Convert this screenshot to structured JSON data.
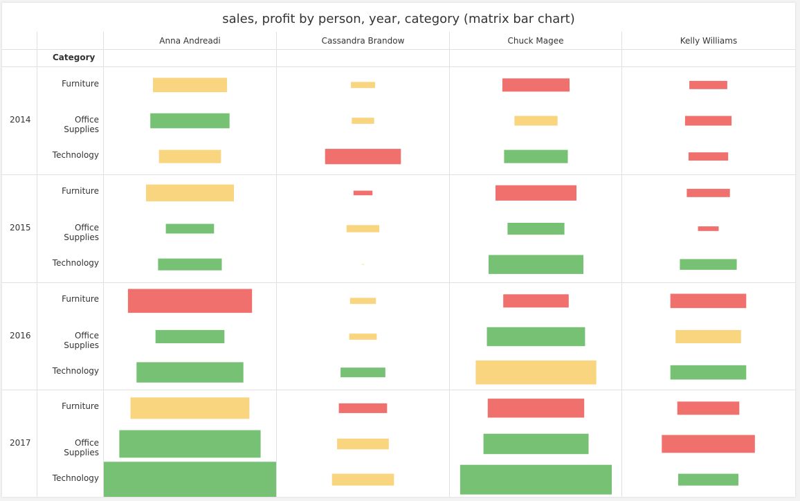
{
  "title": "sales, profit by person, year, category (matrix bar chart)",
  "row_header": "Category",
  "chart_data": {
    "type": "bar",
    "title": "sales, profit by person, year, category (matrix bar chart)",
    "persons": [
      "Anna Andreadi",
      "Cassandra Brandow",
      "Chuck Magee",
      "Kelly Williams"
    ],
    "years": [
      "2014",
      "2015",
      "2016",
      "2017"
    ],
    "categories": [
      "Furniture",
      "Office Supplies",
      "Technology"
    ],
    "colors": {
      "high": "#77c175",
      "medium": "#f8d57e",
      "low": "#ef706c"
    },
    "cells": [
      {
        "person": "Anna Andreadi",
        "year": "2014",
        "category": "Furniture",
        "sales": 0.43,
        "profit": 0.4,
        "profit_level": "medium"
      },
      {
        "person": "Anna Andreadi",
        "year": "2014",
        "category": "Office Supplies",
        "sales": 0.46,
        "profit": 0.42,
        "profit_level": "high"
      },
      {
        "person": "Anna Andreadi",
        "year": "2014",
        "category": "Technology",
        "sales": 0.36,
        "profit": 0.37,
        "profit_level": "medium"
      },
      {
        "person": "Anna Andreadi",
        "year": "2015",
        "category": "Furniture",
        "sales": 0.51,
        "profit": 0.47,
        "profit_level": "medium"
      },
      {
        "person": "Anna Andreadi",
        "year": "2015",
        "category": "Office Supplies",
        "sales": 0.28,
        "profit": 0.27,
        "profit_level": "high"
      },
      {
        "person": "Anna Andreadi",
        "year": "2015",
        "category": "Technology",
        "sales": 0.37,
        "profit": 0.33,
        "profit_level": "high"
      },
      {
        "person": "Anna Andreadi",
        "year": "2016",
        "category": "Furniture",
        "sales": 0.72,
        "profit": 0.67,
        "profit_level": "low"
      },
      {
        "person": "Anna Andreadi",
        "year": "2016",
        "category": "Office Supplies",
        "sales": 0.4,
        "profit": 0.37,
        "profit_level": "high"
      },
      {
        "person": "Anna Andreadi",
        "year": "2016",
        "category": "Technology",
        "sales": 0.62,
        "profit": 0.57,
        "profit_level": "high"
      },
      {
        "person": "Anna Andreadi",
        "year": "2017",
        "category": "Furniture",
        "sales": 0.69,
        "profit": 0.6,
        "profit_level": "medium"
      },
      {
        "person": "Anna Andreadi",
        "year": "2017",
        "category": "Office Supplies",
        "sales": 0.82,
        "profit": 0.77,
        "profit_level": "high"
      },
      {
        "person": "Anna Andreadi",
        "year": "2017",
        "category": "Technology",
        "sales": 1.0,
        "profit": 1.0,
        "profit_level": "high"
      },
      {
        "person": "Cassandra Brandow",
        "year": "2014",
        "category": "Furniture",
        "sales": 0.14,
        "profit": 0.17,
        "profit_level": "medium"
      },
      {
        "person": "Cassandra Brandow",
        "year": "2014",
        "category": "Office Supplies",
        "sales": 0.13,
        "profit": 0.17,
        "profit_level": "medium"
      },
      {
        "person": "Cassandra Brandow",
        "year": "2014",
        "category": "Technology",
        "sales": 0.44,
        "profit": 0.43,
        "profit_level": "low"
      },
      {
        "person": "Cassandra Brandow",
        "year": "2015",
        "category": "Furniture",
        "sales": 0.11,
        "profit": 0.13,
        "profit_level": "low"
      },
      {
        "person": "Cassandra Brandow",
        "year": "2015",
        "category": "Office Supplies",
        "sales": 0.19,
        "profit": 0.2,
        "profit_level": "medium"
      },
      {
        "person": "Cassandra Brandow",
        "year": "2015",
        "category": "Technology",
        "sales": 0.01,
        "profit": 0.02,
        "profit_level": "medium"
      },
      {
        "person": "Cassandra Brandow",
        "year": "2016",
        "category": "Furniture",
        "sales": 0.15,
        "profit": 0.17,
        "profit_level": "medium"
      },
      {
        "person": "Cassandra Brandow",
        "year": "2016",
        "category": "Office Supplies",
        "sales": 0.16,
        "profit": 0.17,
        "profit_level": "medium"
      },
      {
        "person": "Cassandra Brandow",
        "year": "2016",
        "category": "Technology",
        "sales": 0.26,
        "profit": 0.27,
        "profit_level": "high"
      },
      {
        "person": "Cassandra Brandow",
        "year": "2017",
        "category": "Furniture",
        "sales": 0.28,
        "profit": 0.27,
        "profit_level": "low"
      },
      {
        "person": "Cassandra Brandow",
        "year": "2017",
        "category": "Office Supplies",
        "sales": 0.3,
        "profit": 0.3,
        "profit_level": "medium"
      },
      {
        "person": "Cassandra Brandow",
        "year": "2017",
        "category": "Technology",
        "sales": 0.36,
        "profit": 0.33,
        "profit_level": "medium"
      },
      {
        "person": "Chuck Magee",
        "year": "2014",
        "category": "Furniture",
        "sales": 0.39,
        "profit": 0.37,
        "profit_level": "low"
      },
      {
        "person": "Chuck Magee",
        "year": "2014",
        "category": "Office Supplies",
        "sales": 0.25,
        "profit": 0.27,
        "profit_level": "medium"
      },
      {
        "person": "Chuck Magee",
        "year": "2014",
        "category": "Technology",
        "sales": 0.37,
        "profit": 0.37,
        "profit_level": "high"
      },
      {
        "person": "Chuck Magee",
        "year": "2015",
        "category": "Furniture",
        "sales": 0.47,
        "profit": 0.43,
        "profit_level": "low"
      },
      {
        "person": "Chuck Magee",
        "year": "2015",
        "category": "Office Supplies",
        "sales": 0.33,
        "profit": 0.33,
        "profit_level": "high"
      },
      {
        "person": "Chuck Magee",
        "year": "2015",
        "category": "Technology",
        "sales": 0.55,
        "profit": 0.53,
        "profit_level": "high"
      },
      {
        "person": "Chuck Magee",
        "year": "2016",
        "category": "Furniture",
        "sales": 0.38,
        "profit": 0.37,
        "profit_level": "low"
      },
      {
        "person": "Chuck Magee",
        "year": "2016",
        "category": "Office Supplies",
        "sales": 0.57,
        "profit": 0.53,
        "profit_level": "high"
      },
      {
        "person": "Chuck Magee",
        "year": "2016",
        "category": "Technology",
        "sales": 0.7,
        "profit": 0.67,
        "profit_level": "medium"
      },
      {
        "person": "Chuck Magee",
        "year": "2017",
        "category": "Furniture",
        "sales": 0.56,
        "profit": 0.53,
        "profit_level": "low"
      },
      {
        "person": "Chuck Magee",
        "year": "2017",
        "category": "Office Supplies",
        "sales": 0.61,
        "profit": 0.57,
        "profit_level": "high"
      },
      {
        "person": "Chuck Magee",
        "year": "2017",
        "category": "Technology",
        "sales": 0.88,
        "profit": 0.83,
        "profit_level": "high"
      },
      {
        "person": "Kelly Williams",
        "year": "2014",
        "category": "Furniture",
        "sales": 0.22,
        "profit": 0.23,
        "profit_level": "low"
      },
      {
        "person": "Kelly Williams",
        "year": "2014",
        "category": "Office Supplies",
        "sales": 0.27,
        "profit": 0.27,
        "profit_level": "low"
      },
      {
        "person": "Kelly Williams",
        "year": "2014",
        "category": "Technology",
        "sales": 0.23,
        "profit": 0.23,
        "profit_level": "low"
      },
      {
        "person": "Kelly Williams",
        "year": "2015",
        "category": "Furniture",
        "sales": 0.25,
        "profit": 0.23,
        "profit_level": "low"
      },
      {
        "person": "Kelly Williams",
        "year": "2015",
        "category": "Office Supplies",
        "sales": 0.12,
        "profit": 0.13,
        "profit_level": "low"
      },
      {
        "person": "Kelly Williams",
        "year": "2015",
        "category": "Technology",
        "sales": 0.33,
        "profit": 0.3,
        "profit_level": "high"
      },
      {
        "person": "Kelly Williams",
        "year": "2016",
        "category": "Furniture",
        "sales": 0.44,
        "profit": 0.4,
        "profit_level": "low"
      },
      {
        "person": "Kelly Williams",
        "year": "2016",
        "category": "Office Supplies",
        "sales": 0.38,
        "profit": 0.37,
        "profit_level": "medium"
      },
      {
        "person": "Kelly Williams",
        "year": "2016",
        "category": "Technology",
        "sales": 0.44,
        "profit": 0.4,
        "profit_level": "high"
      },
      {
        "person": "Kelly Williams",
        "year": "2017",
        "category": "Furniture",
        "sales": 0.36,
        "profit": 0.37,
        "profit_level": "low"
      },
      {
        "person": "Kelly Williams",
        "year": "2017",
        "category": "Office Supplies",
        "sales": 0.54,
        "profit": 0.5,
        "profit_level": "low"
      },
      {
        "person": "Kelly Williams",
        "year": "2017",
        "category": "Technology",
        "sales": 0.35,
        "profit": 0.33,
        "profit_level": "high"
      }
    ]
  }
}
